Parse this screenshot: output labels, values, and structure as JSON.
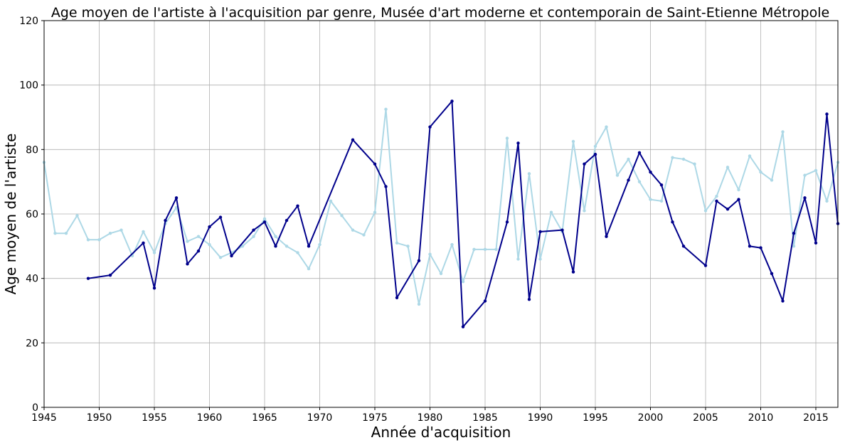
{
  "chart_data": {
    "type": "line",
    "title": "Age moyen de l'artiste à l'acquisition par genre, Musée d'art moderne et contemporain de Saint-Etienne Métropole",
    "xlabel": "Année d'acquisition",
    "ylabel": "Age moyen de l'artiste",
    "xlim": [
      1945,
      2017
    ],
    "ylim": [
      0,
      120
    ],
    "xticks": [
      1945,
      1950,
      1955,
      1960,
      1965,
      1970,
      1975,
      1980,
      1985,
      1990,
      1995,
      2000,
      2005,
      2010,
      2015
    ],
    "yticks": [
      0,
      20,
      40,
      60,
      80,
      100,
      120
    ],
    "grid": true,
    "series": [
      {
        "color": "#add8e6",
        "x": [
          1945,
          1946,
          1947,
          1948,
          1949,
          1950,
          1951,
          1952,
          1953,
          1954,
          1955,
          1956,
          1957,
          1958,
          1959,
          1960,
          1961,
          1962,
          1963,
          1964,
          1965,
          1966,
          1967,
          1968,
          1969,
          1970,
          1971,
          1972,
          1973,
          1974,
          1975,
          1976,
          1977,
          1978,
          1979,
          1980,
          1981,
          1982,
          1983,
          1984,
          1985,
          1986,
          1987,
          1988,
          1989,
          1990,
          1991,
          1992,
          1993,
          1994,
          1995,
          1996,
          1997,
          1998,
          1999,
          2000,
          2001,
          2002,
          2003,
          2004,
          2005,
          2006,
          2007,
          2008,
          2009,
          2010,
          2011,
          2012,
          2013,
          2014,
          2015,
          2016,
          2017
        ],
        "y": [
          76,
          54,
          54,
          59.5,
          52,
          52,
          54,
          55,
          47,
          54.5,
          48,
          57,
          62,
          51.5,
          53,
          50.5,
          46.5,
          48,
          50,
          53,
          58.5,
          53,
          50,
          48,
          43,
          50.5,
          64,
          59.5,
          55,
          53.5,
          60.5,
          92.5,
          51,
          50,
          32,
          47.5,
          41.5,
          50.5,
          39,
          49,
          49,
          49,
          83.5,
          46,
          72.5,
          46,
          60.5,
          54.5,
          82.5,
          61,
          81,
          87,
          72,
          77,
          70,
          64.5,
          64,
          77.5,
          77,
          75.5,
          61,
          65.5,
          74.5,
          67.5,
          78,
          73,
          70.5,
          85.5,
          50,
          72,
          73.5,
          64,
          76
        ]
      },
      {
        "color": "#00008b",
        "x": [
          1949,
          1951,
          1954,
          1955,
          1956,
          1957,
          1958,
          1959,
          1960,
          1961,
          1962,
          1964,
          1965,
          1966,
          1967,
          1968,
          1969,
          1973,
          1975,
          1976,
          1977,
          1979,
          1980,
          1982,
          1983,
          1985,
          1987,
          1988,
          1989,
          1990,
          1992,
          1993,
          1994,
          1995,
          1996,
          1998,
          1999,
          2000,
          2001,
          2002,
          2003,
          2005,
          2006,
          2007,
          2008,
          2009,
          2010,
          2011,
          2012,
          2013,
          2014,
          2015,
          2016,
          2017
        ],
        "y": [
          40,
          41,
          51,
          37,
          58,
          65,
          44.5,
          48.5,
          56,
          59,
          47,
          55,
          57.5,
          50,
          58,
          62.5,
          50,
          83,
          75.5,
          68.5,
          34,
          45.5,
          87,
          95,
          25,
          33,
          57.5,
          82,
          33.5,
          54.5,
          55,
          42,
          75.5,
          78.5,
          53,
          70.5,
          79,
          73,
          69,
          57.5,
          50,
          44,
          64,
          61.5,
          64.5,
          50,
          49.5,
          41.5,
          33,
          54,
          65,
          51,
          91,
          57
        ]
      }
    ]
  }
}
